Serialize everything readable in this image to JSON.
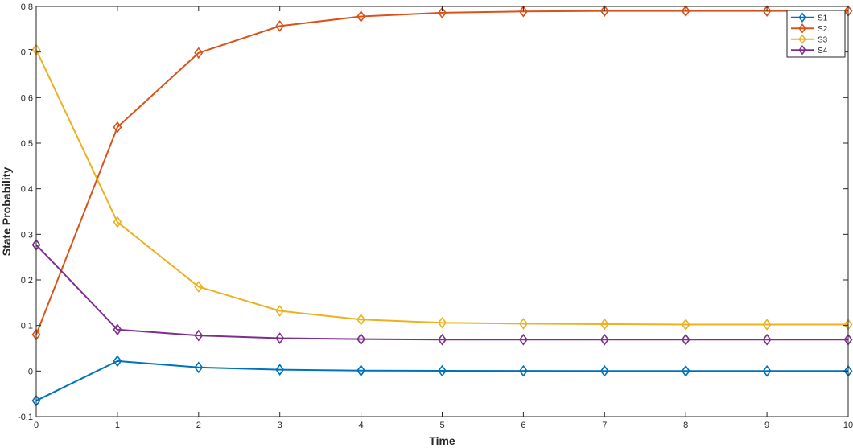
{
  "chart_data": {
    "type": "line",
    "title": "",
    "xlabel": "Time",
    "ylabel": "State Probability",
    "xlim": [
      0,
      10
    ],
    "ylim": [
      -0.1,
      0.8
    ],
    "x_ticks": [
      "0",
      "1",
      "2",
      "3",
      "4",
      "5",
      "6",
      "7",
      "8",
      "9",
      "10"
    ],
    "y_ticks": [
      "-0.1",
      "0",
      "0.1",
      "0.2",
      "0.3",
      "0.4",
      "0.5",
      "0.6",
      "0.7",
      "0.8"
    ],
    "grid": false,
    "legend_position": "top-right",
    "marker": "diamond",
    "x": [
      0,
      1,
      2,
      3,
      4,
      5,
      6,
      7,
      8,
      9,
      10
    ],
    "series": [
      {
        "name": "S1",
        "color": "#0072bd",
        "values": [
          -0.065,
          0.022,
          0.008,
          0.003,
          0.001,
          0.0005,
          0.0003,
          0.0002,
          0.0001,
          0.0001,
          0.0001
        ]
      },
      {
        "name": "S2",
        "color": "#d95319",
        "values": [
          0.08,
          0.535,
          0.698,
          0.757,
          0.778,
          0.786,
          0.789,
          0.79,
          0.79,
          0.79,
          0.79
        ]
      },
      {
        "name": "S3",
        "color": "#edb120",
        "values": [
          0.705,
          0.327,
          0.185,
          0.132,
          0.113,
          0.106,
          0.104,
          0.103,
          0.102,
          0.102,
          0.102
        ]
      },
      {
        "name": "S4",
        "color": "#7e2f8e",
        "values": [
          0.277,
          0.091,
          0.078,
          0.072,
          0.07,
          0.069,
          0.069,
          0.069,
          0.069,
          0.069,
          0.069
        ]
      }
    ]
  }
}
